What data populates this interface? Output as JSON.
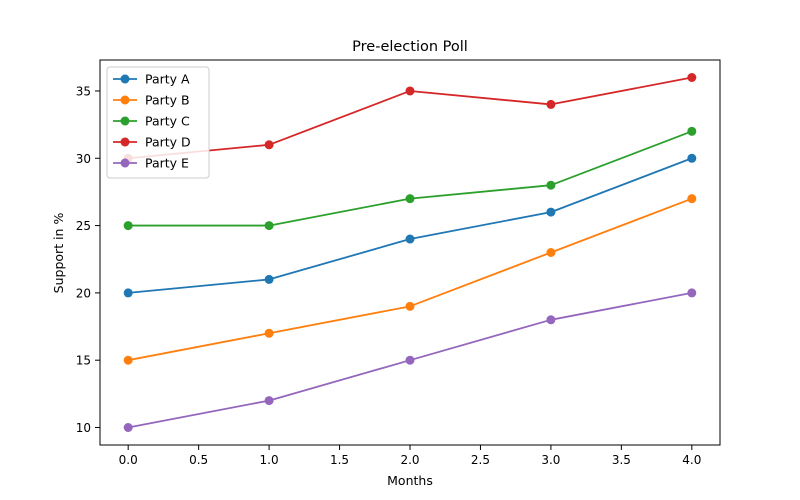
{
  "chart_data": {
    "type": "line",
    "title": "Pre-election Poll",
    "xlabel": "Months",
    "ylabel": "Support in %",
    "x": [
      0,
      1,
      2,
      3,
      4
    ],
    "xlim": [
      -0.2,
      4.2
    ],
    "ylim": [
      8.7,
      37.3
    ],
    "x_ticks": [
      "0.0",
      "0.5",
      "1.0",
      "1.5",
      "2.0",
      "2.5",
      "3.0",
      "3.5",
      "4.0"
    ],
    "y_ticks": [
      "10",
      "15",
      "20",
      "25",
      "30",
      "35"
    ],
    "grid": false,
    "legend_position": "top-left",
    "markers": "circle",
    "series": [
      {
        "name": "Party A",
        "color": "#1f77b4",
        "values": [
          20,
          21,
          24,
          26,
          30
        ]
      },
      {
        "name": "Party B",
        "color": "#ff7f0e",
        "values": [
          15,
          17,
          19,
          23,
          27
        ]
      },
      {
        "name": "Party C",
        "color": "#2ca02c",
        "values": [
          25,
          25,
          27,
          28,
          32
        ]
      },
      {
        "name": "Party D",
        "color": "#d62728",
        "values": [
          30,
          31,
          35,
          34,
          36
        ]
      },
      {
        "name": "Party E",
        "color": "#9467bd",
        "values": [
          10,
          12,
          15,
          18,
          20
        ]
      }
    ]
  }
}
